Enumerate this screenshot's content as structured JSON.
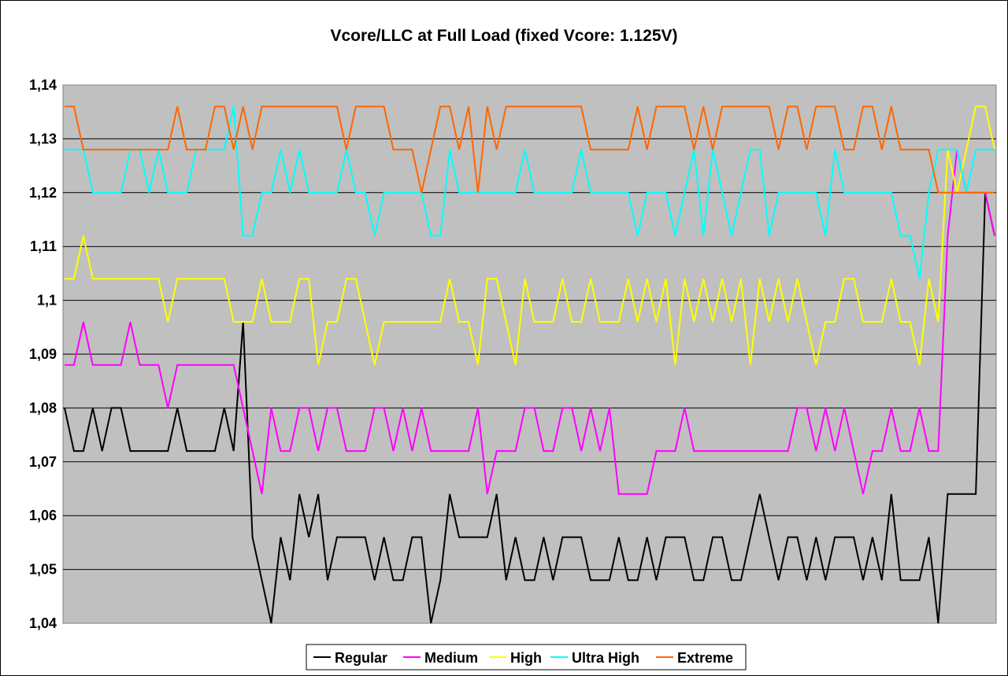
{
  "chart_data": {
    "type": "line",
    "title": "Vcore/LLC at Full Load (fixed Vcore: 1.125V)",
    "xlabel": "",
    "ylabel": "",
    "ylim": [
      1.04,
      1.14
    ],
    "yticks": [
      "1,04",
      "1,05",
      "1,06",
      "1,07",
      "1,08",
      "1,09",
      "1,1",
      "1,11",
      "1,12",
      "1,13",
      "1,14"
    ],
    "grid": true,
    "plot_background": "#c0c0c0",
    "legend_position": "bottom",
    "x": [
      1,
      2,
      3,
      4,
      5,
      6,
      7,
      8,
      9,
      10,
      11,
      12,
      13,
      14,
      15,
      16,
      17,
      18,
      19,
      20,
      21,
      22,
      23,
      24,
      25,
      26,
      27,
      28,
      29,
      30,
      31,
      32,
      33,
      34,
      35,
      36,
      37,
      38,
      39,
      40,
      41,
      42,
      43,
      44,
      45,
      46,
      47,
      48,
      49,
      50,
      51,
      52,
      53,
      54,
      55,
      56,
      57,
      58,
      59,
      60,
      61,
      62,
      63,
      64,
      65,
      66,
      67,
      68,
      69,
      70,
      71,
      72,
      73,
      74,
      75,
      76,
      77,
      78,
      79,
      80,
      81,
      82,
      83,
      84,
      85,
      86,
      87,
      88,
      89,
      90,
      91,
      92,
      93,
      94,
      95,
      96,
      97,
      98,
      99,
      100
    ],
    "series": [
      {
        "name": "Regular",
        "color": "#000000",
        "values": [
          1.08,
          1.072,
          1.072,
          1.08,
          1.072,
          1.08,
          1.08,
          1.072,
          1.072,
          1.072,
          1.072,
          1.072,
          1.08,
          1.072,
          1.072,
          1.072,
          1.072,
          1.08,
          1.072,
          1.096,
          1.056,
          1.048,
          1.04,
          1.056,
          1.048,
          1.064,
          1.056,
          1.064,
          1.048,
          1.056,
          1.056,
          1.056,
          1.056,
          1.048,
          1.056,
          1.048,
          1.048,
          1.056,
          1.056,
          1.04,
          1.048,
          1.064,
          1.056,
          1.056,
          1.056,
          1.056,
          1.064,
          1.048,
          1.056,
          1.048,
          1.048,
          1.056,
          1.048,
          1.056,
          1.056,
          1.056,
          1.048,
          1.048,
          1.048,
          1.056,
          1.048,
          1.048,
          1.056,
          1.048,
          1.056,
          1.056,
          1.056,
          1.048,
          1.048,
          1.056,
          1.056,
          1.048,
          1.048,
          1.056,
          1.064,
          1.056,
          1.048,
          1.056,
          1.056,
          1.048,
          1.056,
          1.048,
          1.056,
          1.056,
          1.056,
          1.048,
          1.056,
          1.048,
          1.064,
          1.048,
          1.048,
          1.048,
          1.056,
          1.04,
          1.064,
          1.064,
          1.064,
          1.064,
          1.12,
          1.112
        ]
      },
      {
        "name": "Medium",
        "color": "#ff00ff",
        "values": [
          1.088,
          1.088,
          1.096,
          1.088,
          1.088,
          1.088,
          1.088,
          1.096,
          1.088,
          1.088,
          1.088,
          1.08,
          1.088,
          1.088,
          1.088,
          1.088,
          1.088,
          1.088,
          1.088,
          1.08,
          1.072,
          1.064,
          1.08,
          1.072,
          1.072,
          1.08,
          1.08,
          1.072,
          1.08,
          1.08,
          1.072,
          1.072,
          1.072,
          1.08,
          1.08,
          1.072,
          1.08,
          1.072,
          1.08,
          1.072,
          1.072,
          1.072,
          1.072,
          1.072,
          1.08,
          1.064,
          1.072,
          1.072,
          1.072,
          1.08,
          1.08,
          1.072,
          1.072,
          1.08,
          1.08,
          1.072,
          1.08,
          1.072,
          1.08,
          1.064,
          1.064,
          1.064,
          1.064,
          1.072,
          1.072,
          1.072,
          1.08,
          1.072,
          1.072,
          1.072,
          1.072,
          1.072,
          1.072,
          1.072,
          1.072,
          1.072,
          1.072,
          1.072,
          1.08,
          1.08,
          1.072,
          1.08,
          1.072,
          1.08,
          1.072,
          1.064,
          1.072,
          1.072,
          1.08,
          1.072,
          1.072,
          1.08,
          1.072,
          1.072,
          1.112,
          1.128,
          1.12,
          1.12,
          1.12,
          1.112
        ]
      },
      {
        "name": "High",
        "color": "#ffff00",
        "values": [
          1.104,
          1.104,
          1.112,
          1.104,
          1.104,
          1.104,
          1.104,
          1.104,
          1.104,
          1.104,
          1.104,
          1.096,
          1.104,
          1.104,
          1.104,
          1.104,
          1.104,
          1.104,
          1.096,
          1.096,
          1.096,
          1.104,
          1.096,
          1.096,
          1.096,
          1.104,
          1.104,
          1.088,
          1.096,
          1.096,
          1.104,
          1.104,
          1.096,
          1.088,
          1.096,
          1.096,
          1.096,
          1.096,
          1.096,
          1.096,
          1.096,
          1.104,
          1.096,
          1.096,
          1.088,
          1.104,
          1.104,
          1.096,
          1.088,
          1.104,
          1.096,
          1.096,
          1.096,
          1.104,
          1.096,
          1.096,
          1.104,
          1.096,
          1.096,
          1.096,
          1.104,
          1.096,
          1.104,
          1.096,
          1.104,
          1.088,
          1.104,
          1.096,
          1.104,
          1.096,
          1.104,
          1.096,
          1.104,
          1.088,
          1.104,
          1.096,
          1.104,
          1.096,
          1.104,
          1.096,
          1.088,
          1.096,
          1.096,
          1.104,
          1.104,
          1.096,
          1.096,
          1.096,
          1.104,
          1.096,
          1.096,
          1.088,
          1.104,
          1.096,
          1.128,
          1.12,
          1.128,
          1.136,
          1.136,
          1.128
        ]
      },
      {
        "name": "Ultra High",
        "color": "#00ffff",
        "values": [
          1.128,
          1.128,
          1.128,
          1.12,
          1.12,
          1.12,
          1.12,
          1.128,
          1.128,
          1.12,
          1.128,
          1.12,
          1.12,
          1.12,
          1.128,
          1.128,
          1.128,
          1.128,
          1.136,
          1.112,
          1.112,
          1.12,
          1.12,
          1.128,
          1.12,
          1.128,
          1.12,
          1.12,
          1.12,
          1.12,
          1.128,
          1.12,
          1.12,
          1.112,
          1.12,
          1.12,
          1.12,
          1.12,
          1.12,
          1.112,
          1.112,
          1.128,
          1.12,
          1.12,
          1.12,
          1.12,
          1.12,
          1.12,
          1.12,
          1.128,
          1.12,
          1.12,
          1.12,
          1.12,
          1.12,
          1.128,
          1.12,
          1.12,
          1.12,
          1.12,
          1.12,
          1.112,
          1.12,
          1.12,
          1.12,
          1.112,
          1.12,
          1.128,
          1.112,
          1.128,
          1.12,
          1.112,
          1.12,
          1.128,
          1.128,
          1.112,
          1.12,
          1.12,
          1.12,
          1.12,
          1.12,
          1.112,
          1.128,
          1.12,
          1.12,
          1.12,
          1.12,
          1.12,
          1.12,
          1.112,
          1.112,
          1.104,
          1.12,
          1.128,
          1.128,
          1.128,
          1.12,
          1.128,
          1.128,
          1.128
        ]
      },
      {
        "name": "Extreme",
        "color": "#ff6600",
        "values": [
          1.136,
          1.136,
          1.128,
          1.128,
          1.128,
          1.128,
          1.128,
          1.128,
          1.128,
          1.128,
          1.128,
          1.128,
          1.136,
          1.128,
          1.128,
          1.128,
          1.136,
          1.136,
          1.128,
          1.136,
          1.128,
          1.136,
          1.136,
          1.136,
          1.136,
          1.136,
          1.136,
          1.136,
          1.136,
          1.136,
          1.128,
          1.136,
          1.136,
          1.136,
          1.136,
          1.128,
          1.128,
          1.128,
          1.12,
          1.128,
          1.136,
          1.136,
          1.128,
          1.136,
          1.12,
          1.136,
          1.128,
          1.136,
          1.136,
          1.136,
          1.136,
          1.136,
          1.136,
          1.136,
          1.136,
          1.136,
          1.128,
          1.128,
          1.128,
          1.128,
          1.128,
          1.136,
          1.128,
          1.136,
          1.136,
          1.136,
          1.136,
          1.128,
          1.136,
          1.128,
          1.136,
          1.136,
          1.136,
          1.136,
          1.136,
          1.136,
          1.128,
          1.136,
          1.136,
          1.128,
          1.136,
          1.136,
          1.136,
          1.128,
          1.128,
          1.136,
          1.136,
          1.128,
          1.136,
          1.128,
          1.128,
          1.128,
          1.128,
          1.12,
          1.12,
          1.12,
          1.12,
          1.12,
          1.12,
          1.12
        ]
      }
    ]
  }
}
